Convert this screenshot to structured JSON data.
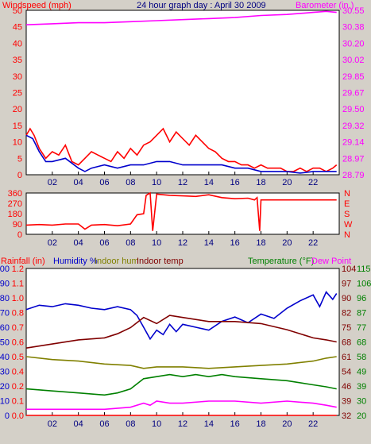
{
  "chart_data": [
    {
      "type": "line",
      "title": "24 hour graph day : April 30 2009",
      "left_axis_label": "Windspeed (mph)",
      "right_axis_label": "Barometer (in.)",
      "x_ticks": [
        "02",
        "04",
        "06",
        "08",
        "10",
        "12",
        "14",
        "16",
        "18",
        "20",
        "22"
      ],
      "x_range": [
        0,
        24
      ],
      "left_ylim": [
        0,
        50
      ],
      "left_ticks": [
        "0",
        "5",
        "10",
        "15",
        "20",
        "25",
        "30",
        "35",
        "40",
        "45",
        "50"
      ],
      "right_ylim": [
        28.79,
        30.38
      ],
      "right_ticks": [
        "28.79",
        "28.97",
        "29.14",
        "29.32",
        "29.50",
        "29.67",
        "29.85",
        "30.02",
        "30.20",
        "30.38",
        "30.55"
      ],
      "series": [
        {
          "name": "Windspeed (mph)",
          "color": "#ff0000",
          "axis": "left",
          "x": [
            0,
            0.3,
            0.6,
            1,
            1.5,
            2,
            2.5,
            3,
            3.5,
            4,
            4.5,
            5,
            5.5,
            6,
            6.5,
            7,
            7.5,
            8,
            8.5,
            9,
            9.5,
            10,
            10.5,
            11,
            11.5,
            12,
            12.5,
            13,
            13.5,
            14,
            14.5,
            15,
            15.5,
            16,
            16.5,
            17,
            17.5,
            18,
            18.5,
            19,
            19.5,
            20,
            20.5,
            21,
            21.5,
            22,
            22.5,
            23,
            23.5,
            23.8
          ],
          "values": [
            12,
            14,
            12,
            8,
            5,
            7,
            6,
            9,
            4,
            3,
            5,
            7,
            6,
            5,
            4,
            7,
            5,
            8,
            6,
            9,
            10,
            12,
            14,
            10,
            13,
            11,
            9,
            12,
            10,
            8,
            7,
            5,
            4,
            4,
            3,
            3,
            2,
            3,
            2,
            2,
            2,
            1,
            1,
            2,
            1,
            2,
            2,
            1,
            2,
            3
          ]
        },
        {
          "name": "Wind gust",
          "color": "#0000cc",
          "axis": "left",
          "x": [
            0,
            0.5,
            1,
            1.5,
            2,
            3,
            4,
            4.5,
            5,
            6,
            7,
            8,
            9,
            10,
            11,
            12,
            13,
            14,
            15,
            16,
            17,
            18,
            19,
            20,
            21,
            22,
            23,
            23.8
          ],
          "values": [
            12,
            11,
            7,
            4,
            4,
            5,
            2,
            1,
            2,
            3,
            2,
            3,
            3,
            4,
            4,
            3,
            3,
            3,
            3,
            2,
            2,
            1,
            1,
            1,
            0.5,
            1,
            1,
            1
          ]
        },
        {
          "name": "Barometer (in.)",
          "color": "#ff00ff",
          "axis": "right",
          "x": [
            0,
            2,
            4,
            6,
            8,
            10,
            12,
            14,
            16,
            18,
            20,
            22,
            23,
            23.8
          ],
          "values": [
            30.24,
            30.25,
            30.26,
            30.26,
            30.27,
            30.28,
            30.29,
            30.3,
            30.31,
            30.33,
            30.34,
            30.36,
            30.37,
            30.36
          ]
        }
      ]
    },
    {
      "type": "line",
      "left_ylim": [
        0,
        360
      ],
      "left_ticks": [
        "0",
        "90",
        "180",
        "270",
        "360"
      ],
      "right_ticks": [
        "N",
        "E",
        "S",
        "W",
        "N"
      ],
      "x_ticks": [
        "02",
        "04",
        "06",
        "08",
        "10",
        "12",
        "14",
        "16",
        "18",
        "20",
        "22"
      ],
      "x_range": [
        0,
        24
      ],
      "series": [
        {
          "name": "Wind direction",
          "color": "#ff0000",
          "axis": "left",
          "x": [
            0,
            1,
            2,
            3,
            4,
            4.5,
            5,
            6,
            7,
            8,
            8.5,
            9,
            9.2,
            9.5,
            9.7,
            10,
            11,
            12,
            13,
            14,
            15,
            16,
            17,
            17.5,
            17.7,
            17.9,
            18,
            19,
            20,
            21,
            22,
            23,
            23.8
          ],
          "values": [
            80,
            85,
            80,
            90,
            90,
            45,
            80,
            85,
            75,
            90,
            170,
            180,
            340,
            360,
            30,
            350,
            340,
            335,
            330,
            345,
            320,
            310,
            315,
            300,
            320,
            30,
            300,
            300,
            300,
            300,
            300,
            300,
            300
          ]
        }
      ]
    },
    {
      "type": "line",
      "legend": [
        {
          "label": "Rainfall (in)",
          "color": "#ff0000"
        },
        {
          "label": "Humidity %",
          "color": "#0000cc"
        },
        {
          "label": "Indoor hum",
          "color": "#808000"
        },
        {
          "label": "Indoor temp",
          "color": "#800000"
        },
        {
          "label": "Temperature (°F)",
          "color": "#008000"
        },
        {
          "label": "Dew Point",
          "color": "#ff00ff"
        }
      ],
      "x_ticks": [
        "02",
        "04",
        "06",
        "08",
        "10",
        "12",
        "14",
        "16",
        "18",
        "20",
        "22"
      ],
      "x_range": [
        0,
        24
      ],
      "left1_ticks": [
        "0",
        "10",
        "20",
        "30",
        "40",
        "50",
        "60",
        "70",
        "80",
        "90",
        "100"
      ],
      "left2_ticks": [
        "0.0",
        "0.1",
        "0.2",
        "0.4",
        "0.5",
        "0.6",
        "0.7",
        "0.8",
        "1.0",
        "1.1",
        "1.2"
      ],
      "right1_ticks": [
        "32",
        "39",
        "46",
        "54",
        "61",
        "68",
        "75",
        "82",
        "90",
        "97",
        "104"
      ],
      "right2_ticks": [
        "20",
        "30",
        "39",
        "49",
        "58",
        "68",
        "77",
        "87",
        "96",
        "106",
        "115"
      ],
      "humidity_ylim": [
        0,
        100
      ],
      "temp_ylim": [
        32,
        104
      ],
      "series": [
        {
          "name": "Humidity %",
          "color": "#0000cc",
          "axis": "humidity",
          "x": [
            0,
            1,
            2,
            3,
            4,
            5,
            6,
            7,
            8,
            8.5,
            9,
            9.5,
            10,
            10.5,
            11,
            11.5,
            12,
            13,
            14,
            15,
            16,
            17,
            18,
            19,
            20,
            21,
            22,
            22.5,
            23,
            23.5,
            23.8
          ],
          "values": [
            72,
            75,
            74,
            76,
            75,
            73,
            72,
            74,
            72,
            68,
            60,
            52,
            58,
            55,
            62,
            57,
            62,
            60,
            58,
            64,
            67,
            63,
            69,
            66,
            73,
            78,
            82,
            74,
            84,
            79,
            83
          ]
        },
        {
          "name": "Indoor hum",
          "color": "#808000",
          "axis": "humidity",
          "x": [
            0,
            2,
            4,
            6,
            8,
            9,
            10,
            12,
            14,
            16,
            18,
            20,
            22,
            23,
            23.8
          ],
          "values": [
            40,
            38,
            37,
            35,
            34,
            32,
            33,
            33,
            32,
            33,
            34,
            35,
            37,
            39,
            40
          ]
        },
        {
          "name": "Indoor temp",
          "color": "#800000",
          "axis": "temp",
          "x": [
            0,
            2,
            4,
            6,
            7,
            8,
            9,
            10,
            11,
            12,
            14,
            16,
            18,
            20,
            22,
            23,
            23.8
          ],
          "values": [
            65,
            67,
            69,
            70,
            72,
            75,
            80,
            77,
            81,
            80,
            78,
            78,
            77,
            74,
            70,
            69,
            68
          ]
        },
        {
          "name": "Temperature (°F)",
          "color": "#008000",
          "axis": "temp",
          "x": [
            0,
            2,
            4,
            6,
            7,
            8,
            9,
            10,
            11,
            12,
            13,
            14,
            15,
            16,
            18,
            20,
            22,
            23,
            23.8
          ],
          "values": [
            45,
            44,
            43,
            42,
            43,
            45,
            50,
            51,
            52,
            51,
            52,
            51,
            52,
            51,
            50,
            49,
            47,
            46,
            45
          ]
        },
        {
          "name": "Dew Point",
          "color": "#ff00ff",
          "axis": "temp",
          "x": [
            0,
            2,
            4,
            6,
            8,
            9,
            9.5,
            10,
            11,
            12,
            14,
            16,
            18,
            20,
            22,
            23,
            23.8
          ],
          "values": [
            35,
            35,
            35,
            35,
            36,
            38,
            37,
            39,
            38,
            38,
            39,
            39,
            38,
            39,
            38,
            37,
            36
          ]
        },
        {
          "name": "Rainfall (in)",
          "color": "#ff0000",
          "axis": "humidity",
          "x": [
            0,
            23.8
          ],
          "values": [
            0,
            0
          ]
        }
      ]
    }
  ]
}
